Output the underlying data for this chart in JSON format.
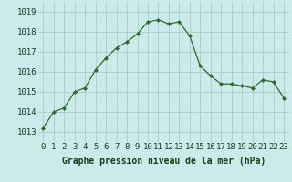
{
  "x": [
    0,
    1,
    2,
    3,
    4,
    5,
    6,
    7,
    8,
    9,
    10,
    11,
    12,
    13,
    14,
    15,
    16,
    17,
    18,
    19,
    20,
    21,
    22,
    23
  ],
  "y": [
    1013.2,
    1014.0,
    1014.2,
    1015.0,
    1015.2,
    1016.1,
    1016.7,
    1017.2,
    1017.5,
    1017.9,
    1018.5,
    1018.6,
    1018.4,
    1018.5,
    1017.8,
    1016.3,
    1015.8,
    1015.4,
    1015.4,
    1015.3,
    1015.2,
    1015.6,
    1015.5,
    1014.7
  ],
  "line_color": "#2d6a2d",
  "marker": "D",
  "marker_size": 2.0,
  "bg_color": "#cceaea",
  "grid_color": "#aacccc",
  "xlabel": "Graphe pression niveau de la mer (hPa)",
  "xlabel_color": "#1a3a1a",
  "xlabel_fontsize": 7.0,
  "ylabel_ticks": [
    1013,
    1014,
    1015,
    1016,
    1017,
    1018,
    1019
  ],
  "xlim": [
    -0.5,
    23.5
  ],
  "ylim": [
    1012.5,
    1019.5
  ],
  "tick_label_color": "#1a3a1a",
  "tick_fontsize": 6.5,
  "linewidth": 0.9
}
